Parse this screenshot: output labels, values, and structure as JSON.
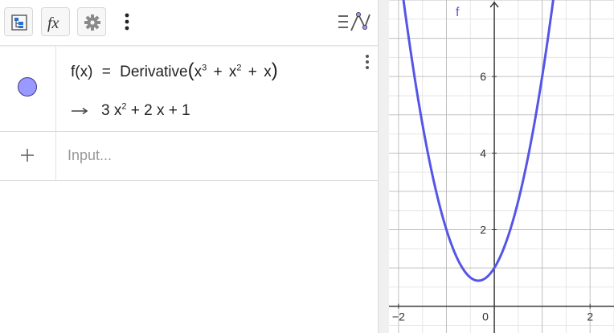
{
  "toolbar": {
    "buttons": [
      {
        "name": "algebra-description-button",
        "icon": "tree-icon"
      },
      {
        "name": "fx-button",
        "icon": "fx-icon",
        "label": "fx"
      },
      {
        "name": "settings-button",
        "icon": "gear-icon"
      },
      {
        "name": "more-menu-button",
        "icon": "kebab-icon"
      }
    ],
    "graph_toggle_icon": "graphing-icon"
  },
  "algebra": {
    "items": [
      {
        "name": "f",
        "definition": {
          "lhs": "f(x)",
          "equals": "=",
          "command": "Derivative",
          "open_paren": "(",
          "t1_base": "x",
          "t1_exp": "3",
          "plus1": "+",
          "t2_base": "x",
          "t2_exp": "2",
          "plus2": "+",
          "t3": "x",
          "close_paren": ")"
        },
        "output": {
          "coef1": "3 x",
          "exp1": "2",
          "rest": "+ 2 x + 1"
        },
        "color": "#9999ff",
        "visible": true
      }
    ],
    "input": {
      "placeholder": "Input...",
      "value": ""
    }
  },
  "graphics": {
    "curve_label": "f",
    "curve_color": "#5555e8",
    "axis_color": "#3a3a3a",
    "grid_major_color": "#c0c0c0",
    "grid_minor_color": "#e6e6e6",
    "x_tick_labels": [
      "−2",
      "0",
      "2"
    ],
    "y_tick_labels": [
      "2",
      "4",
      "6"
    ]
  },
  "chart_data": {
    "type": "line",
    "title": "",
    "xlabel": "",
    "ylabel": "",
    "series": [
      {
        "name": "f",
        "expression": "3x^2 + 2x + 1"
      }
    ],
    "xlim": [
      -2.2,
      2.5
    ],
    "ylim": [
      -0.7,
      8.0
    ],
    "x_ticks": [
      -2,
      0,
      2
    ],
    "y_ticks": [
      2,
      4,
      6
    ],
    "grid": true
  }
}
